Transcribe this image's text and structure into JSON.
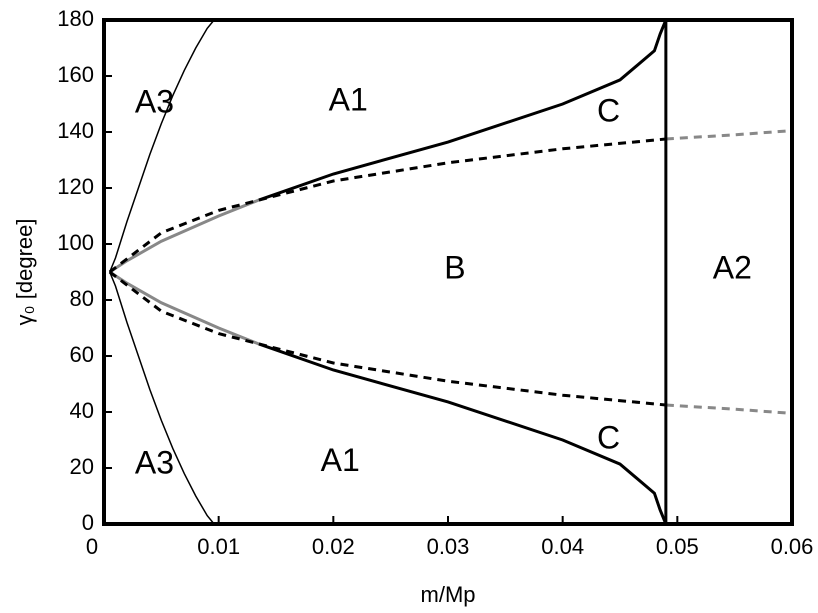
{
  "chart_data": {
    "type": "line",
    "xlabel": "m/Mp",
    "ylabel": "γ₀ [degree]",
    "xlim": [
      0,
      0.06
    ],
    "ylim": [
      0,
      180
    ],
    "xticks": [
      0,
      0.01,
      0.02,
      0.03,
      0.04,
      0.05,
      0.06
    ],
    "yticks": [
      0,
      20,
      40,
      60,
      80,
      100,
      120,
      140,
      160,
      180
    ],
    "series": [
      {
        "color": "#000000",
        "width": 1.5,
        "dash": false,
        "x": [
          0.0005,
          0.001,
          0.002,
          0.003,
          0.004,
          0.005,
          0.006,
          0.007,
          0.008,
          0.009,
          0.0096
        ],
        "values": [
          90,
          95,
          108,
          120,
          132,
          143,
          153,
          162,
          170,
          177,
          180
        ]
      },
      {
        "color": "#000000",
        "width": 1.5,
        "dash": false,
        "x": [
          0.0005,
          0.001,
          0.002,
          0.003,
          0.004,
          0.005,
          0.006,
          0.007,
          0.008,
          0.009,
          0.0096
        ],
        "values": [
          90,
          85,
          72,
          60,
          48,
          37,
          27,
          18,
          10,
          3,
          0
        ]
      },
      {
        "color": "#888888",
        "width": 3,
        "dash": false,
        "x": [
          0.0005,
          0.002,
          0.005,
          0.01,
          0.0135
        ],
        "values": [
          90,
          94,
          101,
          110,
          115.7
        ]
      },
      {
        "color": "#000000",
        "width": 3,
        "dash": false,
        "x": [
          0.0135,
          0.02,
          0.03,
          0.04,
          0.045,
          0.048,
          0.0485,
          0.049
        ],
        "values": [
          115.7,
          125,
          136.4,
          150,
          158.6,
          169,
          175,
          180
        ]
      },
      {
        "color": "#888888",
        "width": 3,
        "dash": false,
        "x": [
          0.0005,
          0.002,
          0.005,
          0.01,
          0.0135
        ],
        "values": [
          90,
          86,
          79,
          70,
          64.3
        ]
      },
      {
        "color": "#000000",
        "width": 3,
        "dash": false,
        "x": [
          0.0135,
          0.02,
          0.03,
          0.04,
          0.045,
          0.048,
          0.0485,
          0.049
        ],
        "values": [
          64.3,
          55,
          43.6,
          30,
          21.4,
          11,
          5,
          0
        ]
      },
      {
        "color": "#000000",
        "width": 3,
        "dash": true,
        "x": [
          0.0005,
          0.005,
          0.01,
          0.02,
          0.03,
          0.04,
          0.049
        ],
        "values": [
          90,
          104,
          112,
          122.5,
          129,
          134,
          137.5
        ]
      },
      {
        "color": "#888888",
        "width": 3,
        "dash": true,
        "x": [
          0.049,
          0.055,
          0.06
        ],
        "values": [
          137.5,
          139,
          140.5
        ]
      },
      {
        "color": "#000000",
        "width": 3,
        "dash": true,
        "x": [
          0.0005,
          0.005,
          0.01,
          0.02,
          0.03,
          0.04,
          0.049
        ],
        "values": [
          90,
          76,
          68,
          57.5,
          51,
          46,
          42.5
        ]
      },
      {
        "color": "#888888",
        "width": 3,
        "dash": true,
        "x": [
          0.049,
          0.055,
          0.06
        ],
        "values": [
          42.5,
          41,
          39.5
        ]
      },
      {
        "color": "#000000",
        "width": 3,
        "dash": false,
        "x": [
          0.049,
          0.049
        ],
        "values": [
          0,
          180
        ]
      }
    ],
    "annotations": [
      {
        "text": "A3",
        "x": 0.0044,
        "y": 150
      },
      {
        "text": "A1",
        "x": 0.0213,
        "y": 150.7
      },
      {
        "text": "C",
        "x": 0.044,
        "y": 146.8
      },
      {
        "text": "B",
        "x": 0.0306,
        "y": 90.7
      },
      {
        "text": "A2",
        "x": 0.0548,
        "y": 90.7
      },
      {
        "text": "A3",
        "x": 0.0044,
        "y": 21
      },
      {
        "text": "A1",
        "x": 0.0206,
        "y": 22
      },
      {
        "text": "C",
        "x": 0.044,
        "y": 30
      }
    ]
  }
}
